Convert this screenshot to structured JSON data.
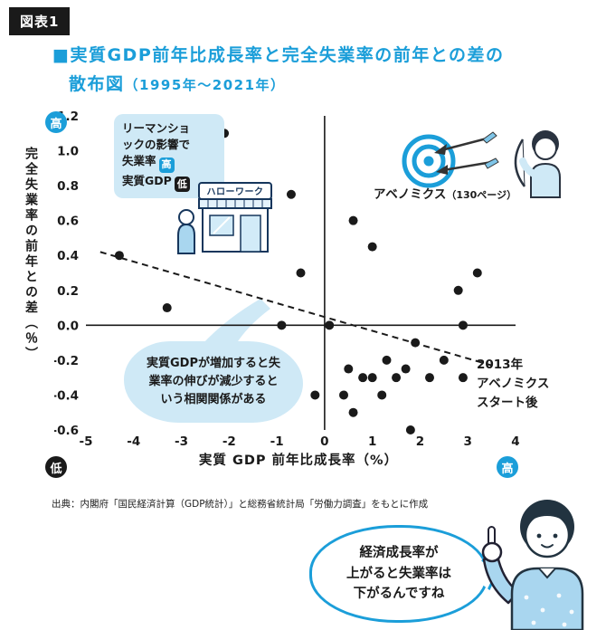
{
  "figure_label": "図表1",
  "title": {
    "line1": "■実質GDP前年比成長率と完全失業率の前年との差の",
    "line2a": "散布図",
    "line2b": "（1995年～2021年）"
  },
  "colors": {
    "accent_blue": "#1b9ed9",
    "light_blue": "#cfe9f6",
    "dark": "#1a1a1a",
    "navy": "#16365c"
  },
  "axes": {
    "y_title": "完全失業率の前年との差（％）",
    "x_title": "実質 GDP 前年比成長率（%）",
    "y_high_badge": "高",
    "y_low_badge": "低",
    "x_high_badge": "高"
  },
  "chart_data": {
    "type": "scatter",
    "title": "実質GDP前年比成長率と完全失業率の前年との差の散布図（1995年～2021年）",
    "xlabel": "実質 GDP 前年比成長率（%）",
    "ylabel": "完全失業率の前年との差（％）",
    "xlim": [
      -5,
      4
    ],
    "ylim": [
      -0.6,
      1.2
    ],
    "grid": false,
    "x_ticks": [
      -5,
      -4,
      -3,
      -2,
      -1,
      0,
      1,
      2,
      3,
      4
    ],
    "x_tick_labels": [
      "-5",
      "-4",
      "-3",
      "-2",
      "-1",
      "0",
      "1",
      "2",
      "3",
      "4"
    ],
    "y_ticks": [
      1.2,
      1.0,
      0.8,
      0.6,
      0.4,
      0.2,
      0.0,
      -0.2,
      -0.4,
      -0.6
    ],
    "y_tick_labels": [
      "1.2",
      "1.0",
      "0.8",
      "0.6",
      "0.4",
      "0.2",
      "0.0",
      "-0.2",
      "-0.4",
      "-0.6"
    ],
    "points": [
      {
        "x": -4.3,
        "y": 0.4
      },
      {
        "x": -3.3,
        "y": 0.1
      },
      {
        "x": -2.1,
        "y": 1.1
      },
      {
        "x": -0.9,
        "y": 0.0
      },
      {
        "x": -0.7,
        "y": 0.75
      },
      {
        "x": -0.5,
        "y": 0.3
      },
      {
        "x": -0.2,
        "y": -0.4
      },
      {
        "x": 0.1,
        "y": 0.0
      },
      {
        "x": 0.4,
        "y": -0.4
      },
      {
        "x": 0.5,
        "y": -0.25
      },
      {
        "x": 0.6,
        "y": 0.6
      },
      {
        "x": 0.6,
        "y": -0.5
      },
      {
        "x": 0.8,
        "y": -0.3
      },
      {
        "x": 1.0,
        "y": 0.45
      },
      {
        "x": 1.0,
        "y": -0.3
      },
      {
        "x": 1.2,
        "y": -0.4
      },
      {
        "x": 1.3,
        "y": -0.2
      },
      {
        "x": 1.5,
        "y": -0.3
      },
      {
        "x": 1.7,
        "y": -0.25
      },
      {
        "x": 1.8,
        "y": -0.6
      },
      {
        "x": 1.9,
        "y": -0.1
      },
      {
        "x": 2.2,
        "y": -0.3
      },
      {
        "x": 2.5,
        "y": -0.2
      },
      {
        "x": 2.8,
        "y": 0.2
      },
      {
        "x": 2.9,
        "y": 0.0
      },
      {
        "x": 2.9,
        "y": -0.3
      },
      {
        "x": 3.2,
        "y": 0.3
      }
    ],
    "trendline": {
      "x1": -4.7,
      "y1": 0.42,
      "x2": 3.5,
      "y2": -0.23,
      "style": "dashed"
    }
  },
  "annotations": {
    "lehman": {
      "line1": "リーマンショ",
      "line2": "ックの影響で",
      "line3_text": "失業率",
      "line3_badge": "高",
      "line4_text": "実質GDP",
      "line4_badge": "低"
    },
    "hellowork_sign": "ハローワーク",
    "abenomics_label": "アベノミクス",
    "abenomics_page": "（130ページ）",
    "cloud": {
      "line1": "実質GDPが増加すると失",
      "line2": "業率の伸びが減少すると",
      "line3": "いう相関関係がある"
    },
    "start2013": {
      "line1": "2013年",
      "line2": "アベノミクス",
      "line3": "スタート後"
    }
  },
  "source": "出典：内閣府「国民経済計算（GDP統計）」と総務省統計局「労働力調査」をもとに作成",
  "speech_bubble": {
    "line1": "経済成長率が",
    "line2": "上がると失業率は",
    "line3": "下がるんですね"
  }
}
